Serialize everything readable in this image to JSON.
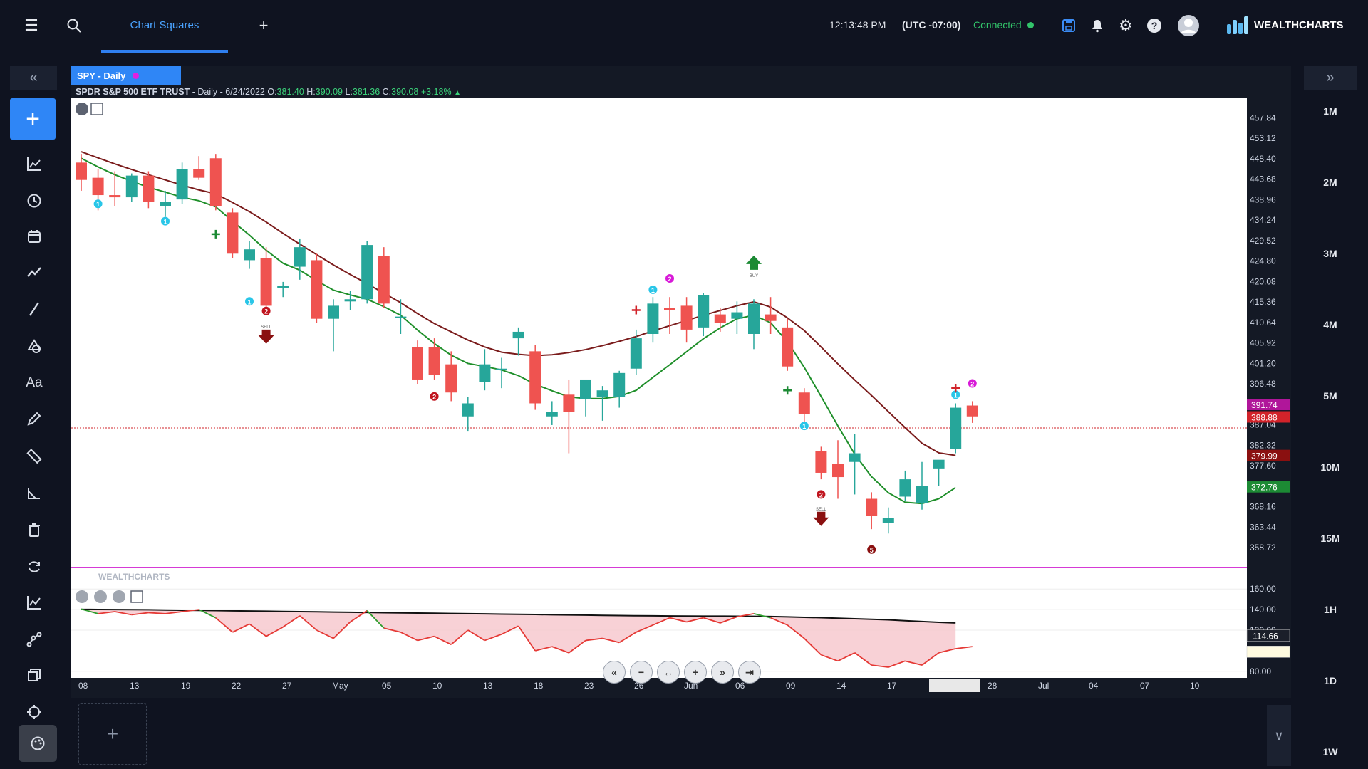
{
  "topbar": {
    "tab_label": "Chart Squares",
    "time": "12:13:48 PM",
    "timezone": "(UTC -07:00)",
    "status": "Connected",
    "brand": "WEALTHCHARTS"
  },
  "symbol": {
    "tab_label": "SPY - Daily",
    "name": "SPDR S&P 500 ETF TRUST",
    "period_date": " - Daily - 6/24/2022",
    "o_label": "O:",
    "o": "381.40",
    "h_label": "H:",
    "h": "390.09",
    "l_label": "L:",
    "l": "381.36",
    "c_label": "C:",
    "c": "390.08",
    "change": "+3.18%"
  },
  "timeframes": [
    "1M",
    "2M",
    "3M",
    "4M",
    "5M",
    "10M",
    "15M",
    "1H",
    "1D",
    "1W"
  ],
  "chart_data": {
    "type": "candlestick",
    "price_ticks": [
      "457.84",
      "453.12",
      "448.40",
      "443.68",
      "438.96",
      "434.24",
      "429.52",
      "424.80",
      "420.08",
      "415.36",
      "410.64",
      "405.92",
      "401.20",
      "396.48",
      "387.04",
      "382.32",
      "377.60",
      "368.16",
      "363.44",
      "358.72"
    ],
    "price_badges": [
      {
        "value": "391.74",
        "color": "#b0169a"
      },
      {
        "value": "388.88",
        "color": "#d2232a"
      },
      {
        "value": "379.99",
        "color": "#8a1010"
      },
      {
        "value": "372.76",
        "color": "#1c8a34"
      }
    ],
    "osc_ticks": [
      "160.00",
      "140.00",
      "120.00",
      "80.00"
    ],
    "osc_badges": [
      {
        "value": "114.66",
        "color": "#1b1f2a"
      },
      {
        "value": "",
        "color": "#fffbe0"
      }
    ],
    "x_labels": [
      "08",
      "13",
      "19",
      "22",
      "27",
      "May",
      "05",
      "10",
      "13",
      "18",
      "23",
      "26",
      "Jun",
      "06",
      "09",
      "14",
      "17",
      "28",
      "Jul",
      "04",
      "07",
      "10"
    ],
    "candles": [
      {
        "o": 447.5,
        "h": 449.5,
        "l": 441.0,
        "c": 443.5
      },
      {
        "o": 444.0,
        "h": 446.0,
        "l": 436.5,
        "c": 440.0
      },
      {
        "o": 440.0,
        "h": 445.5,
        "l": 437.5,
        "c": 439.5
      },
      {
        "o": 439.5,
        "h": 445.0,
        "l": 438.5,
        "c": 444.5
      },
      {
        "o": 444.5,
        "h": 445.5,
        "l": 437.0,
        "c": 438.5
      },
      {
        "o": 437.5,
        "h": 441.0,
        "l": 435.0,
        "c": 438.5
      },
      {
        "o": 439.0,
        "h": 447.5,
        "l": 438.0,
        "c": 446.0
      },
      {
        "o": 446.0,
        "h": 449.0,
        "l": 443.5,
        "c": 444.0
      },
      {
        "o": 448.5,
        "h": 449.5,
        "l": 436.5,
        "c": 437.5
      },
      {
        "o": 436.0,
        "h": 437.0,
        "l": 425.5,
        "c": 426.5
      },
      {
        "o": 425.0,
        "h": 429.5,
        "l": 423.0,
        "c": 427.5
      },
      {
        "o": 425.5,
        "h": 428.0,
        "l": 413.0,
        "c": 414.5
      },
      {
        "o": 419.0,
        "h": 420.0,
        "l": 416.5,
        "c": 419.0
      },
      {
        "o": 423.5,
        "h": 430.0,
        "l": 420.5,
        "c": 428.0
      },
      {
        "o": 425.0,
        "h": 426.5,
        "l": 410.5,
        "c": 411.5
      },
      {
        "o": 411.5,
        "h": 416.0,
        "l": 404.0,
        "c": 414.5
      },
      {
        "o": 415.5,
        "h": 418.0,
        "l": 413.5,
        "c": 416.0
      },
      {
        "o": 416.0,
        "h": 429.5,
        "l": 415.0,
        "c": 428.5
      },
      {
        "o": 426.0,
        "h": 428.0,
        "l": 414.0,
        "c": 415.0
      },
      {
        "o": 412.0,
        "h": 416.0,
        "l": 408.0,
        "c": 412.0
      },
      {
        "o": 405.0,
        "h": 406.5,
        "l": 396.5,
        "c": 397.5
      },
      {
        "o": 405.0,
        "h": 407.0,
        "l": 397.5,
        "c": 398.5
      },
      {
        "o": 401.0,
        "h": 404.0,
        "l": 392.5,
        "c": 394.5
      },
      {
        "o": 389.0,
        "h": 393.5,
        "l": 385.5,
        "c": 392.0
      },
      {
        "o": 397.0,
        "h": 404.5,
        "l": 395.0,
        "c": 401.0
      },
      {
        "o": 400.0,
        "h": 402.5,
        "l": 395.5,
        "c": 400.0
      },
      {
        "o": 407.0,
        "h": 409.5,
        "l": 403.0,
        "c": 408.5
      },
      {
        "o": 404.0,
        "h": 405.5,
        "l": 390.5,
        "c": 392.0
      },
      {
        "o": 389.0,
        "h": 392.5,
        "l": 387.0,
        "c": 390.0
      },
      {
        "o": 394.0,
        "h": 397.5,
        "l": 380.5,
        "c": 390.0
      },
      {
        "o": 393.0,
        "h": 397.0,
        "l": 389.0,
        "c": 397.5
      },
      {
        "o": 393.5,
        "h": 396.0,
        "l": 388.0,
        "c": 395.0
      },
      {
        "o": 393.5,
        "h": 399.5,
        "l": 391.0,
        "c": 399.0
      },
      {
        "o": 400.0,
        "h": 409.0,
        "l": 398.5,
        "c": 407.0
      },
      {
        "o": 408.0,
        "h": 416.5,
        "l": 406.0,
        "c": 415.0
      },
      {
        "o": 414.0,
        "h": 416.5,
        "l": 408.0,
        "c": 413.5
      },
      {
        "o": 414.5,
        "h": 416.5,
        "l": 406.0,
        "c": 409.0
      },
      {
        "o": 409.5,
        "h": 417.5,
        "l": 407.5,
        "c": 417.0
      },
      {
        "o": 412.5,
        "h": 414.0,
        "l": 408.5,
        "c": 410.5
      },
      {
        "o": 411.5,
        "h": 415.5,
        "l": 408.0,
        "c": 413.0
      },
      {
        "o": 408.0,
        "h": 416.0,
        "l": 404.5,
        "c": 415.0
      },
      {
        "o": 412.5,
        "h": 416.5,
        "l": 408.0,
        "c": 411.0
      },
      {
        "o": 409.5,
        "h": 411.5,
        "l": 399.5,
        "c": 400.5
      },
      {
        "o": 394.5,
        "h": 395.5,
        "l": 387.5,
        "c": 389.5
      },
      {
        "o": 381.0,
        "h": 382.0,
        "l": 374.5,
        "c": 376.0
      },
      {
        "o": 378.0,
        "h": 383.5,
        "l": 370.0,
        "c": 375.0
      },
      {
        "o": 378.5,
        "h": 385.0,
        "l": 371.0,
        "c": 380.5
      },
      {
        "o": 370.0,
        "h": 371.5,
        "l": 363.0,
        "c": 366.0
      },
      {
        "o": 364.5,
        "h": 368.0,
        "l": 362.0,
        "c": 365.5
      },
      {
        "o": 370.5,
        "h": 376.5,
        "l": 369.5,
        "c": 374.5
      },
      {
        "o": 369.0,
        "h": 378.5,
        "l": 367.5,
        "c": 373.0
      },
      {
        "o": 377.0,
        "h": 378.5,
        "l": 373.0,
        "c": 379.0
      },
      {
        "o": 381.5,
        "h": 392.0,
        "l": 380.5,
        "c": 391.0
      },
      {
        "o": 391.5,
        "h": 392.5,
        "l": 387.5,
        "c": 389.0
      }
    ],
    "series": [
      {
        "name": "",
        "color": "#7a1b1b",
        "values": [
          450.0,
          448.6,
          447.2,
          445.9,
          444.7,
          443.5,
          442.3,
          441.2,
          440.3,
          438.3,
          436.2,
          433.8,
          431.2,
          428.7,
          426.3,
          423.9,
          421.7,
          419.6,
          417.4,
          415.2,
          412.7,
          410.4,
          408.5,
          406.6,
          405.0,
          403.8,
          403.3,
          403.0,
          403.2,
          403.7,
          404.4,
          405.3,
          406.3,
          407.4,
          408.7,
          409.9,
          411.1,
          412.3,
          413.4,
          414.5,
          415.4,
          414.2,
          411.7,
          408.8,
          405.0,
          401.1,
          397.4,
          393.8,
          390.1,
          386.4,
          382.8,
          380.6,
          380.0
        ]
      },
      {
        "name": "",
        "color": "#1f8f2a",
        "values": [
          448.5,
          446.5,
          444.7,
          443.2,
          441.8,
          440.7,
          439.5,
          438.7,
          437.3,
          434.0,
          430.8,
          427.3,
          424.3,
          422.7,
          420.3,
          418.1,
          417.0,
          416.0,
          414.3,
          412.3,
          408.9,
          405.8,
          403.1,
          401.2,
          400.5,
          399.7,
          398.4,
          396.4,
          394.9,
          393.5,
          393.1,
          393.1,
          393.6,
          395.0,
          398.0,
          400.9,
          403.9,
          406.9,
          409.4,
          411.5,
          412.3,
          410.6,
          406.2,
          400.3,
          393.6,
          386.8,
          380.3,
          375.1,
          371.4,
          369.2,
          368.9,
          370.0,
          372.6
        ]
      }
    ],
    "oscillator": {
      "signal": [
        140.2,
        140.1,
        140.0,
        139.9,
        139.8,
        139.6,
        139.4,
        139.2,
        139.0,
        138.8,
        138.6,
        138.4,
        138.2,
        138.0,
        137.8,
        137.6,
        137.4,
        137.2,
        137.0,
        136.8,
        136.6,
        136.4,
        136.2,
        136.0,
        135.8,
        135.6,
        135.4,
        135.2,
        135.0,
        134.8,
        134.6,
        134.4,
        134.2,
        134.0,
        133.9,
        133.8,
        133.7,
        133.6,
        133.6,
        133.5,
        133.4,
        133.2,
        132.9,
        132.5,
        132.1,
        131.6,
        131.1,
        130.6,
        130.0,
        129.2,
        128.4,
        127.6,
        127.0
      ],
      "main": [
        140.5,
        136,
        138,
        135,
        137,
        136,
        138,
        140,
        132,
        118,
        126,
        114,
        123,
        134,
        120,
        112,
        128,
        139,
        122,
        118,
        110,
        114,
        106,
        120,
        110,
        116,
        124,
        100,
        104,
        98,
        110,
        112,
        108,
        118,
        125,
        132,
        128,
        132,
        127,
        133,
        136,
        132,
        125,
        112,
        96,
        90,
        98,
        86,
        84,
        90,
        86,
        98,
        102,
        104
      ]
    },
    "markers": [
      {
        "bar": 1,
        "label": "1",
        "color": "#29c6e8",
        "price": 438.0
      },
      {
        "bar": 5,
        "label": "1",
        "color": "#29c6e8",
        "price": 434.0
      },
      {
        "bar": 10,
        "label": "1",
        "color": "#29c6e8",
        "price": 415.5
      },
      {
        "bar": 11,
        "label": "2",
        "color": "#c0151f",
        "price": 413.3
      },
      {
        "bar": 21,
        "label": "2",
        "color": "#c0151f",
        "price": 393.6
      },
      {
        "bar": 34,
        "label": "1",
        "color": "#29c6e8",
        "price": 418.2
      },
      {
        "bar": 35,
        "label": "2",
        "color": "#d81ad8",
        "price": 420.8
      },
      {
        "bar": 43,
        "label": "1",
        "color": "#29c6e8",
        "price": 386.8
      },
      {
        "bar": 44,
        "label": "2",
        "color": "#c0151f",
        "price": 371.0
      },
      {
        "bar": 47,
        "label": "5",
        "color": "#8a0f0f",
        "price": 358.3
      },
      {
        "bar": 52,
        "label": "1",
        "color": "#29c6e8",
        "price": 394.0
      },
      {
        "bar": 53,
        "label": "2",
        "color": "#d81ad8",
        "price": 396.6
      }
    ],
    "arrows": [
      {
        "bar": 11,
        "dir": "down",
        "color": "#8a1010",
        "price": 409.0,
        "tag": "SELL"
      },
      {
        "bar": 40,
        "dir": "up",
        "color": "#1c8a34",
        "price": 422.8,
        "tag": "BUY"
      },
      {
        "bar": 44,
        "dir": "down",
        "color": "#8a1010",
        "price": 367.0,
        "tag": "SELL"
      }
    ],
    "crosses": [
      {
        "bar": 8,
        "color": "#1c8a34",
        "price": 431.0
      },
      {
        "bar": 33,
        "color": "#d2232a",
        "price": 413.5
      },
      {
        "bar": 42,
        "color": "#1c8a34",
        "price": 395.0
      },
      {
        "bar": 52,
        "color": "#d2232a",
        "price": 395.5
      }
    ],
    "overlay_brand": "WEALTHCHARTS"
  }
}
